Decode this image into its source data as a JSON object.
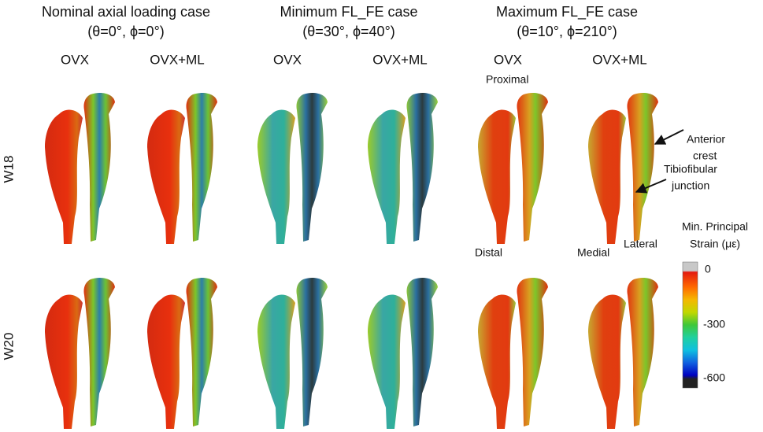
{
  "columns": [
    {
      "title": "Nominal axial loading case",
      "angles": "(θ=0°, ϕ=0°)",
      "groups": [
        "OVX",
        "OVX+ML"
      ]
    },
    {
      "title": "Minimum FL_FE case",
      "angles": "(θ=30°, ϕ=40°)",
      "groups": [
        "OVX",
        "OVX+ML"
      ]
    },
    {
      "title": "Maximum FL_FE case",
      "angles": "(θ=10°, ϕ=210°)",
      "groups": [
        "OVX",
        "OVX+ML"
      ]
    }
  ],
  "rows": [
    "W18",
    "W20"
  ],
  "annotations": {
    "proximal": "Proximal",
    "distal": "Distal",
    "medial": "Medial",
    "lateral": "Lateral",
    "anterior_crest": [
      "Anterior",
      "crest"
    ],
    "tibiofibular_junction": [
      "Tibiofibular",
      "junction"
    ]
  },
  "colorbar": {
    "title": [
      "Min. Principal",
      "Strain (με)"
    ],
    "labels": [
      "0",
      "-300",
      "-600"
    ]
  }
}
